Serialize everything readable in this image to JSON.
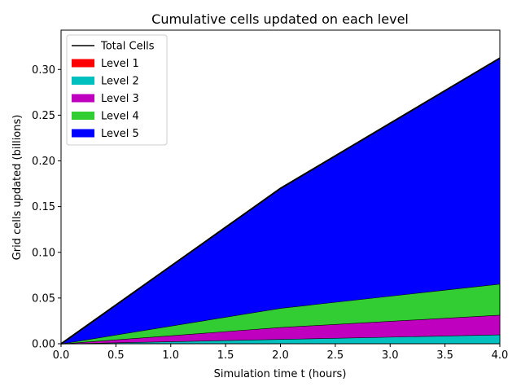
{
  "chart_data": {
    "type": "area",
    "stacked": true,
    "title": "Cumulative cells updated on each level",
    "xlabel": "Simulation time t (hours)",
    "ylabel": "Grid cells updated (billions)",
    "xlim": [
      0.0,
      4.0
    ],
    "ylim": [
      0.0,
      0.343
    ],
    "xticks": [
      "0.0",
      "0.5",
      "1.0",
      "1.5",
      "2.0",
      "2.5",
      "3.0",
      "3.5",
      "4.0"
    ],
    "yticks": [
      "0.00",
      "0.05",
      "0.10",
      "0.15",
      "0.20",
      "0.25",
      "0.30"
    ],
    "x": [
      0.0,
      2.0,
      4.0
    ],
    "series": [
      {
        "name": "Level 1",
        "color": "#ff0000",
        "values": [
          0.0,
          0.0002,
          0.0004
        ]
      },
      {
        "name": "Level 2",
        "color": "#00bfbf",
        "values": [
          0.0,
          0.0048,
          0.0096
        ]
      },
      {
        "name": "Level 3",
        "color": "#bf00bf",
        "values": [
          0.0,
          0.013,
          0.0215
        ]
      },
      {
        "name": "Level 4",
        "color": "#32cd32",
        "values": [
          0.0,
          0.021,
          0.034
        ]
      },
      {
        "name": "Level 5",
        "color": "#0000ff",
        "values": [
          0.0,
          0.131,
          0.247
        ]
      }
    ],
    "total_line": {
      "name": "Total Cells",
      "color": "#000000",
      "values": [
        0.0,
        0.17,
        0.3125
      ]
    },
    "legend": "top-left",
    "grid": false
  }
}
